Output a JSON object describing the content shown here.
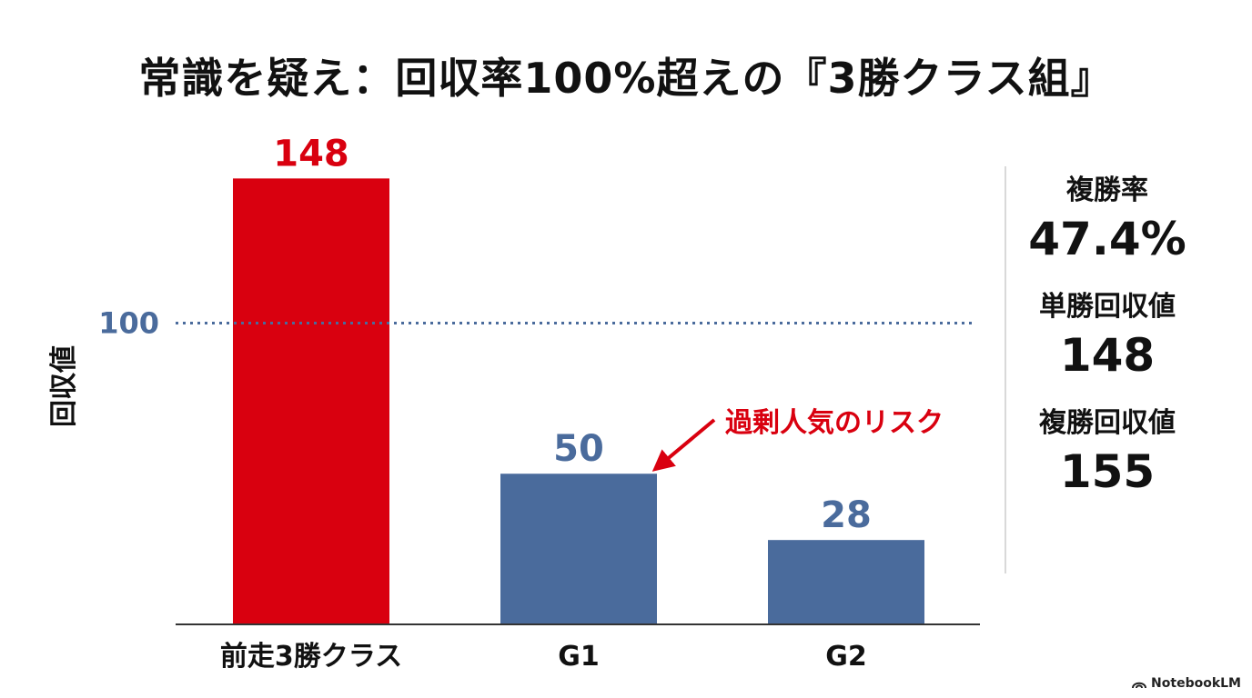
{
  "title": "常識を疑え：回収率100%超えの『3勝クラス組』",
  "chart_data": {
    "type": "bar",
    "categories": [
      "前走3勝クラス",
      "G1",
      "G2"
    ],
    "values": [
      148,
      50,
      28
    ],
    "ylabel": "回収値",
    "ylim": [
      0,
      165
    ],
    "reference_line": {
      "value": 100,
      "label": "100",
      "style": "dotted"
    },
    "annotation": {
      "text": "過剰人気のリスク",
      "target_category": "G1"
    },
    "colors": {
      "highlight": "#d9000f",
      "bar": "#4a6b9c",
      "reference": "#4a6b9c",
      "axis": "#333333"
    },
    "grid": false
  },
  "stats": [
    {
      "label": "複勝率",
      "value": "47.4%"
    },
    {
      "label": "単勝回収値",
      "value": "148"
    },
    {
      "label": "複勝回収値",
      "value": "155"
    }
  ],
  "brand": {
    "name": "NotebookLM",
    "icon": "notebooklm-logo-icon"
  }
}
